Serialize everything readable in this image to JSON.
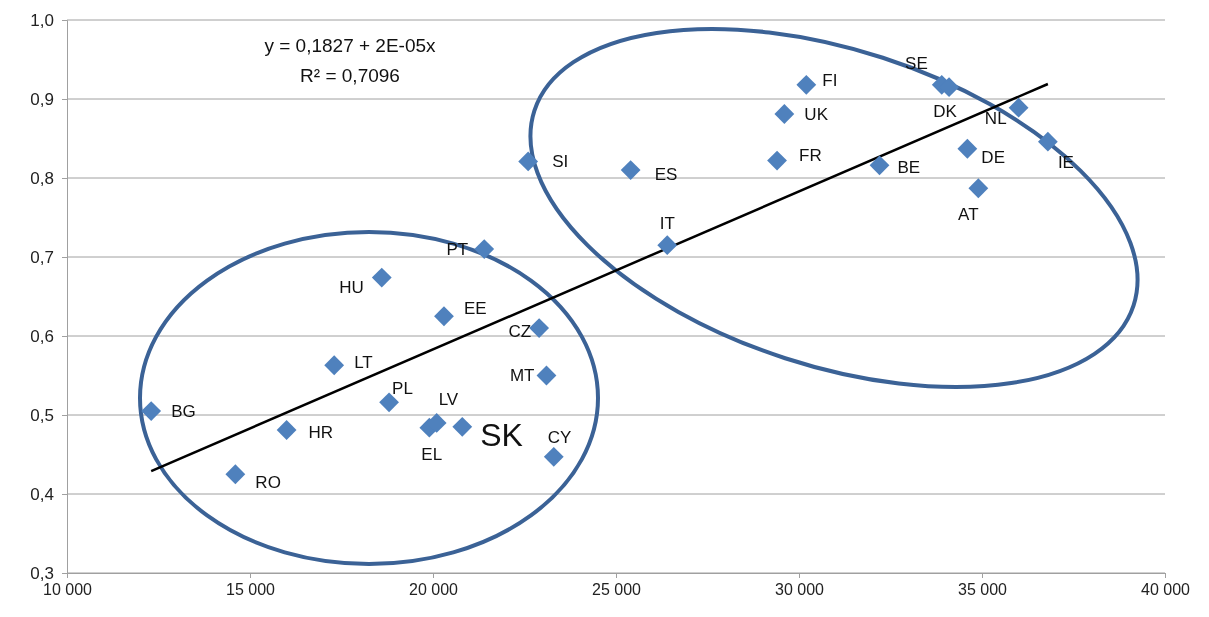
{
  "chart_data": {
    "type": "scatter",
    "grid": "y",
    "xlim": [
      10000,
      40000
    ],
    "ylim": [
      0.3,
      1.0
    ],
    "xticks": [
      {
        "value": 10000,
        "label": "10 000"
      },
      {
        "value": 15000,
        "label": "15 000"
      },
      {
        "value": 20000,
        "label": "20 000"
      },
      {
        "value": 25000,
        "label": "25 000"
      },
      {
        "value": 30000,
        "label": "30 000"
      },
      {
        "value": 35000,
        "label": "35 000"
      },
      {
        "value": 40000,
        "label": "40 000"
      }
    ],
    "yticks": [
      {
        "value": 0.3,
        "label": "0,3"
      },
      {
        "value": 0.4,
        "label": "0,4"
      },
      {
        "value": 0.5,
        "label": "0,5"
      },
      {
        "value": 0.6,
        "label": "0,6"
      },
      {
        "value": 0.7,
        "label": "0,7"
      },
      {
        "value": 0.8,
        "label": "0,8"
      },
      {
        "value": 0.9,
        "label": "0,9"
      },
      {
        "value": 1.0,
        "label": "1,0"
      }
    ],
    "series": [
      {
        "marker": "diamond",
        "color": "#4f81bd",
        "x": [
          12300,
          14600,
          16000,
          17300,
          18800,
          18600,
          20300,
          21400,
          19900,
          20100,
          20800,
          22900,
          23100,
          23300,
          22600,
          25400,
          26400,
          29400,
          29600,
          30200,
          32200,
          33900,
          34100,
          34600,
          34900,
          36000,
          36800
        ],
        "values": [
          0.505,
          0.425,
          0.481,
          0.563,
          0.516,
          0.674,
          0.625,
          0.71,
          0.484,
          0.49,
          0.485,
          0.61,
          0.55,
          0.447,
          0.821,
          0.81,
          0.715,
          0.822,
          0.881,
          0.918,
          0.816,
          0.918,
          0.915,
          0.837,
          0.787,
          0.889,
          0.846
        ],
        "value_labels": [
          "BG",
          "RO",
          "HR",
          "LT",
          "PL",
          "HU",
          "EE",
          "PT",
          "EL",
          "LV",
          "SK",
          "CZ",
          "MT",
          "CY",
          "SI",
          "ES",
          "IT",
          "FR",
          "UK",
          "FI",
          "BE",
          "SE",
          "DK",
          "DE",
          "AT",
          "NL",
          "IE"
        ]
      },
      {
        "type": "line",
        "color": "#000000",
        "x": [
          12300,
          36800
        ],
        "values": [
          0.429,
          0.919
        ]
      }
    ],
    "annotations": [
      "y = 0,1827 + 2E-05x",
      "R² = 0,7096"
    ]
  }
}
